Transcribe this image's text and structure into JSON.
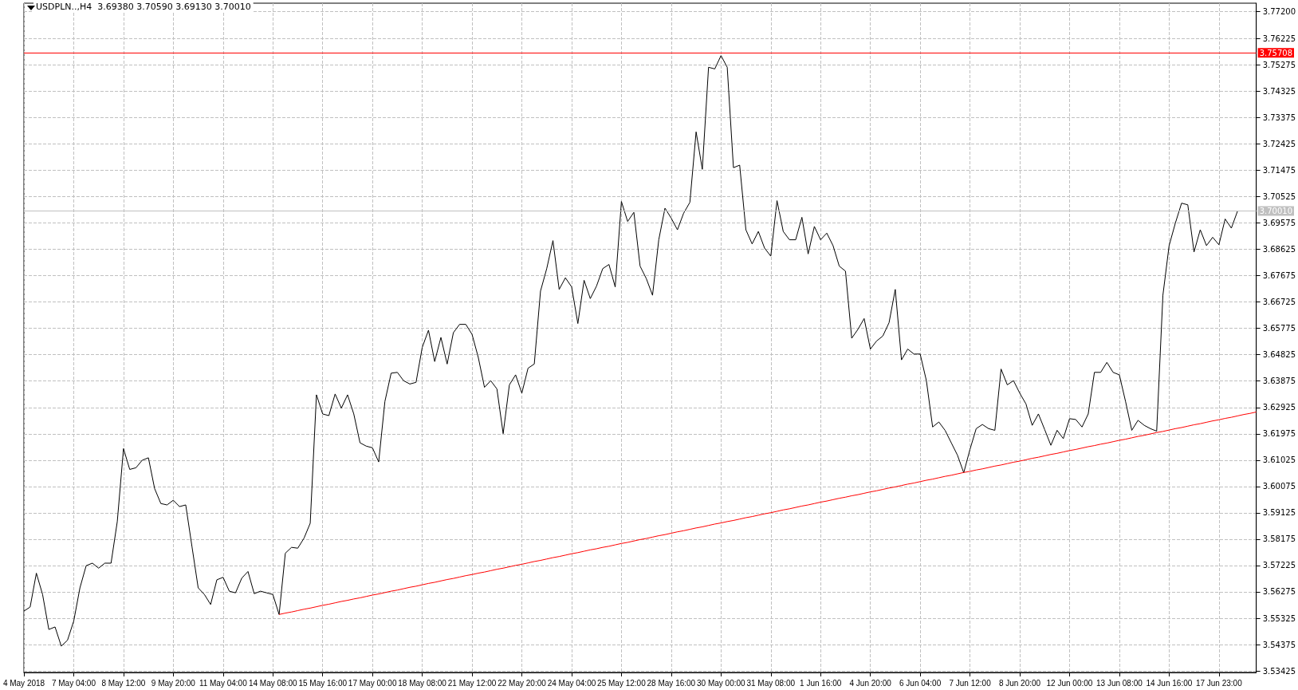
{
  "chart_data": {
    "type": "line",
    "title": "USDPLN..,H4  3.69380 3.70590 3.69130 3.70010",
    "categories": [
      "4 May 2018",
      null,
      null,
      null,
      null,
      null,
      null,
      null,
      "7 May 04:00",
      null,
      null,
      null,
      null,
      null,
      null,
      null,
      "8 May 12:00",
      null,
      null,
      null,
      null,
      null,
      null,
      null,
      "9 May 20:00",
      null,
      null,
      null,
      null,
      null,
      null,
      null,
      "11 May 04:00",
      null,
      null,
      null,
      null,
      null,
      null,
      null,
      "14 May 08:00",
      null,
      null,
      null,
      null,
      null,
      null,
      null,
      "15 May 16:00",
      null,
      null,
      null,
      null,
      null,
      null,
      null,
      "17 May 00:00",
      null,
      null,
      null,
      null,
      null,
      null,
      null,
      "18 May 08:00",
      null,
      null,
      null,
      null,
      null,
      null,
      null,
      "21 May 12:00",
      null,
      null,
      null,
      null,
      null,
      null,
      null,
      "22 May 20:00",
      null,
      null,
      null,
      null,
      null,
      null,
      null,
      "24 May 04:00",
      null,
      null,
      null,
      null,
      null,
      null,
      null,
      "25 May 12:00",
      null,
      null,
      null,
      null,
      null,
      null,
      null,
      "28 May 16:00",
      null,
      null,
      null,
      null,
      null,
      null,
      null,
      "30 May 00:00",
      null,
      null,
      null,
      null,
      null,
      null,
      null,
      "31 May 08:00",
      null,
      null,
      null,
      null,
      null,
      null,
      null,
      "1 Jun 16:00",
      null,
      null,
      null,
      null,
      null,
      null,
      null,
      "4 Jun 20:00",
      null,
      null,
      null,
      null,
      null,
      null,
      null,
      "6 Jun 04:00",
      null,
      null,
      null,
      null,
      null,
      null,
      null,
      "7 Jun 12:00",
      null,
      null,
      null,
      null,
      null,
      null,
      null,
      "8 Jun 20:00",
      null,
      null,
      null,
      null,
      null,
      null,
      null,
      "12 Jun 00:00",
      null,
      null,
      null,
      null,
      null,
      null,
      null,
      "13 Jun 08:00",
      null,
      null,
      null,
      null,
      null,
      null,
      null,
      "14 Jun 16:00",
      null,
      null,
      null,
      null,
      null,
      null,
      null,
      "17 Jun 23:00",
      null,
      null,
      null,
      null,
      null,
      null
    ],
    "series": [
      {
        "color": "#000000",
        "values": [
          3.5558,
          3.5573,
          3.5695,
          3.5618,
          3.5492,
          3.5501,
          3.5432,
          3.5453,
          3.5522,
          3.5642,
          3.5722,
          3.5731,
          3.5713,
          3.5731,
          3.5731,
          3.5881,
          3.6144,
          3.6069,
          3.6075,
          3.6102,
          3.6111,
          3.6,
          3.5946,
          3.5941,
          3.5958,
          3.5935,
          3.5941,
          3.5791,
          3.5642,
          3.5618,
          3.5582,
          3.5671,
          3.568,
          3.563,
          3.5624,
          3.5677,
          3.5701,
          3.5621,
          3.563,
          3.5624,
          3.5618,
          3.5546,
          3.5767,
          3.5788,
          3.5785,
          3.5821,
          3.5875,
          3.6338,
          3.6269,
          3.6263,
          3.6341,
          3.629,
          3.6338,
          3.6269,
          3.6165,
          3.6153,
          3.6147,
          3.6096,
          3.6314,
          3.6416,
          3.6419,
          3.6389,
          3.6377,
          3.6383,
          3.6509,
          3.6571,
          3.6458,
          3.6545,
          3.6449,
          3.6562,
          3.6592,
          3.6592,
          3.6556,
          3.6473,
          3.6365,
          3.6389,
          3.6359,
          3.6198,
          3.6374,
          3.641,
          3.6344,
          3.6434,
          3.6449,
          3.6712,
          3.6793,
          3.6894,
          3.6718,
          3.676,
          3.6727,
          3.6595,
          3.6751,
          3.6685,
          3.673,
          3.6793,
          3.6808,
          3.6727,
          3.7035,
          3.6963,
          3.6996,
          3.6802,
          3.6757,
          3.6697,
          3.6897,
          3.7011,
          3.6975,
          3.6933,
          3.6993,
          3.7032,
          3.7286,
          3.7151,
          3.7519,
          3.7513,
          3.7561,
          3.7519,
          3.7157,
          3.7166,
          3.6933,
          3.6882,
          3.6927,
          3.6867,
          3.6838,
          3.7038,
          3.6927,
          3.6897,
          3.6897,
          3.6978,
          3.6846,
          3.6945,
          3.6897,
          3.6921,
          3.6876,
          3.6802,
          3.6784,
          3.6542,
          3.6574,
          3.6613,
          3.6503,
          3.6532,
          3.655,
          3.6598,
          3.6718,
          3.6464,
          3.6503,
          3.6485,
          3.6485,
          3.6389,
          3.6222,
          3.624,
          3.621,
          3.6165,
          3.612,
          3.6057,
          3.6141,
          3.6216,
          3.6231,
          3.6216,
          3.621,
          3.6431,
          3.6374,
          3.6389,
          3.6344,
          3.6305,
          3.6228,
          3.6269,
          3.6213,
          3.6156,
          3.621,
          3.618,
          3.6252,
          3.6249,
          3.6222,
          3.6269,
          3.6419,
          3.6419,
          3.6455,
          3.6419,
          3.641,
          3.6314,
          3.621,
          3.6246,
          3.6228,
          3.6216,
          3.6207,
          3.6697,
          3.6876,
          3.6957,
          3.7029,
          3.7023,
          3.6853,
          3.6933,
          3.6876,
          3.6906,
          3.6879,
          3.6972,
          3.6939,
          3.7001,
          null,
          null,
          null
        ]
      },
      {
        "type": "line",
        "color": "#ff0000",
        "values": [
          null,
          null,
          null,
          null,
          null,
          null,
          null,
          null,
          null,
          null,
          null,
          null,
          null,
          null,
          null,
          null,
          null,
          null,
          null,
          null,
          null,
          null,
          null,
          null,
          null,
          null,
          null,
          null,
          null,
          null,
          null,
          null,
          null,
          null,
          null,
          null,
          null,
          null,
          null,
          null,
          null,
          3.5546,
          3.5551,
          3.5555,
          3.556,
          3.5565,
          3.5569,
          3.5574,
          3.5579,
          3.5583,
          3.5588,
          3.5593,
          3.5597,
          3.5602,
          3.5606,
          3.5611,
          3.5616,
          3.562,
          3.5625,
          3.563,
          3.5634,
          3.5639,
          3.5644,
          3.5648,
          3.5653,
          3.5658,
          3.5662,
          3.5667,
          3.5672,
          3.5676,
          3.5681,
          3.5686,
          3.569,
          3.5695,
          3.5699,
          3.5704,
          3.5709,
          3.5713,
          3.5718,
          3.5723,
          3.5727,
          3.5732,
          3.5737,
          3.5741,
          3.5746,
          3.5751,
          3.5755,
          3.576,
          3.5765,
          3.5769,
          3.5774,
          3.5779,
          3.5783,
          3.5788,
          3.5792,
          3.5797,
          3.5802,
          3.5806,
          3.5811,
          3.5816,
          3.582,
          3.5825,
          3.583,
          3.5834,
          3.5839,
          3.5844,
          3.5848,
          3.5853,
          3.5858,
          3.5862,
          3.5867,
          3.5872,
          3.5876,
          3.5881,
          3.5885,
          3.589,
          3.5895,
          3.5899,
          3.5904,
          3.5909,
          3.5913,
          3.5918,
          3.5923,
          3.5927,
          3.5932,
          3.5937,
          3.5941,
          3.5946,
          3.5951,
          3.5955,
          3.596,
          3.5965,
          3.5969,
          3.5974,
          3.5978,
          3.5983,
          3.5988,
          3.5992,
          3.5997,
          3.6002,
          3.6006,
          3.6011,
          3.6016,
          3.602,
          3.6025,
          3.603,
          3.6034,
          3.6039,
          3.6044,
          3.6048,
          3.6053,
          3.6058,
          3.6062,
          3.6067,
          3.6071,
          3.6076,
          3.6081,
          3.6085,
          3.609,
          3.6095,
          3.6099,
          3.6104,
          3.6109,
          3.6113,
          3.6118,
          3.6123,
          3.6127,
          3.6132,
          3.6137,
          3.6141,
          3.6146,
          3.6151,
          3.6155,
          3.616,
          3.6164,
          3.6169,
          3.6174,
          3.6178,
          3.6183,
          3.6188,
          3.6192,
          3.6197,
          3.6202,
          3.6206,
          3.6211,
          3.6216,
          3.622,
          3.6225,
          3.623,
          3.6234,
          3.6239,
          3.6244,
          3.6248,
          3.6253,
          3.6257,
          3.6262,
          3.6267,
          3.6271,
          3.6276
        ]
      }
    ],
    "ylim": [
      3.5337,
      3.775
    ],
    "yticks": [
      3.53425,
      3.54375,
      3.55325,
      3.56275,
      3.57225,
      3.58175,
      3.59125,
      3.60075,
      3.61025,
      3.61975,
      3.62925,
      3.63875,
      3.64825,
      3.65775,
      3.66725,
      3.67675,
      3.68625,
      3.69575,
      3.70525,
      3.71475,
      3.72425,
      3.73375,
      3.74325,
      3.75275,
      3.76225,
      {
        "value": 3.772,
        "label": "3.77200"
      }
    ],
    "ref_lines": [
      {
        "axis": "y",
        "value": 3.75708,
        "label": "3.75708",
        "color": "#ff0000"
      },
      {
        "axis": "y",
        "value": 3.7001,
        "label": "3.70010",
        "color": "#c0c0c0"
      }
    ],
    "grid": true,
    "line_style": "solid"
  }
}
